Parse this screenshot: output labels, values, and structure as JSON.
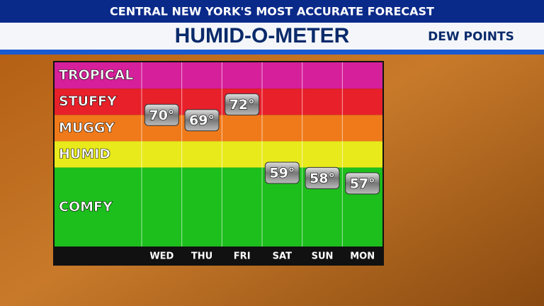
{
  "header": {
    "banner": "CENTRAL NEW YORK'S MOST ACCURATE FORECAST",
    "title": "HUMID-O-METER",
    "subtitle": "DEW POINTS"
  },
  "chart_data": {
    "type": "meter",
    "categories": [
      "WED",
      "THU",
      "FRI",
      "SAT",
      "SUN",
      "MON"
    ],
    "values": [
      70,
      69,
      72,
      59,
      58,
      57
    ],
    "value_labels": [
      "70°",
      "69°",
      "72°",
      "59°",
      "58°",
      "57°"
    ],
    "ylim": [
      45,
      80
    ],
    "bands": [
      {
        "name": "TROPICAL",
        "color": "#d61f9a",
        "range": [
          75,
          80
        ]
      },
      {
        "name": "STUFFY",
        "color": "#e8202a",
        "range": [
          70,
          75
        ]
      },
      {
        "name": "MUGGY",
        "color": "#f07a1a",
        "range": [
          65,
          70
        ]
      },
      {
        "name": "HUMID",
        "color": "#e8ea1c",
        "range": [
          60,
          65
        ]
      },
      {
        "name": "COMFY",
        "color": "#1cbf1c",
        "range": [
          45,
          60
        ]
      }
    ]
  }
}
